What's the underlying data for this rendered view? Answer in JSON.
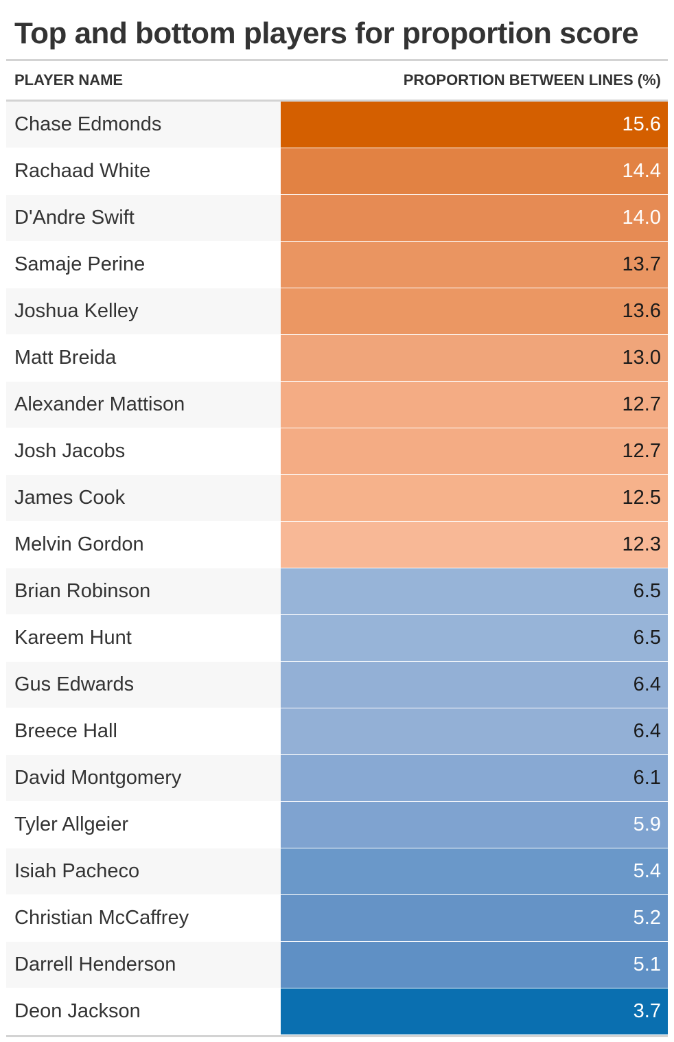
{
  "chart_data": {
    "type": "table",
    "title": "Top and bottom players for proportion score",
    "columns": [
      "PLAYER NAME",
      "PROPORTION BETWEEN LINES (%)"
    ],
    "rows": [
      {
        "name": "Chase Edmonds",
        "value": "15.6",
        "color": "#d45f00",
        "text_color": "#ffffff"
      },
      {
        "name": "Rachaad White",
        "value": "14.4",
        "color": "#e28243",
        "text_color": "#ffffff"
      },
      {
        "name": "D'Andre Swift",
        "value": "14.0",
        "color": "#e68b54",
        "text_color": "#ffffff"
      },
      {
        "name": "Samaje Perine",
        "value": "13.7",
        "color": "#ea9561",
        "text_color": "#1a1a1a"
      },
      {
        "name": "Joshua Kelley",
        "value": "13.6",
        "color": "#eb9763",
        "text_color": "#1a1a1a"
      },
      {
        "name": "Matt Breida",
        "value": "13.0",
        "color": "#f0a57a",
        "text_color": "#1a1a1a"
      },
      {
        "name": "Alexander Mattison",
        "value": "12.7",
        "color": "#f4ac84",
        "text_color": "#1a1a1a"
      },
      {
        "name": "Josh Jacobs",
        "value": "12.7",
        "color": "#f4ac84",
        "text_color": "#1a1a1a"
      },
      {
        "name": "James Cook",
        "value": "12.5",
        "color": "#f6b28b",
        "text_color": "#1a1a1a"
      },
      {
        "name": "Melvin Gordon",
        "value": "12.3",
        "color": "#f8b896",
        "text_color": "#1a1a1a"
      },
      {
        "name": "Brian Robinson",
        "value": "6.5",
        "color": "#97b4d8",
        "text_color": "#1a1a1a"
      },
      {
        "name": "Kareem Hunt",
        "value": "6.5",
        "color": "#97b4d8",
        "text_color": "#1a1a1a"
      },
      {
        "name": "Gus Edwards",
        "value": "6.4",
        "color": "#93b0d6",
        "text_color": "#1a1a1a"
      },
      {
        "name": "Breece Hall",
        "value": "6.4",
        "color": "#93b0d6",
        "text_color": "#1a1a1a"
      },
      {
        "name": "David Montgomery",
        "value": "6.1",
        "color": "#88a9d3",
        "text_color": "#1a1a1a"
      },
      {
        "name": "Tyler Allgeier",
        "value": "5.9",
        "color": "#7fa3d0",
        "text_color": "#ffffff"
      },
      {
        "name": "Isiah Pacheco",
        "value": "5.4",
        "color": "#6a98c9",
        "text_color": "#ffffff"
      },
      {
        "name": "Christian McCaffrey",
        "value": "5.2",
        "color": "#6593c6",
        "text_color": "#ffffff"
      },
      {
        "name": "Darrell Henderson",
        "value": "5.1",
        "color": "#5f90c5",
        "text_color": "#ffffff"
      },
      {
        "name": "Deon Jackson",
        "value": "3.7",
        "color": "#0a6fb0",
        "text_color": "#ffffff"
      }
    ]
  }
}
